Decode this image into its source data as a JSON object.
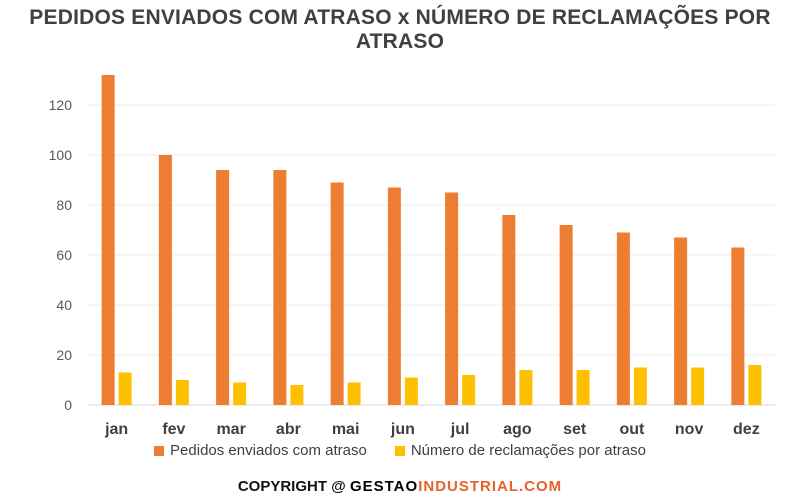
{
  "chart_data": {
    "type": "bar",
    "title": "PEDIDOS ENVIADOS COM ATRASO x NÚMERO DE RECLAMAÇÕES POR ATRASO",
    "categories": [
      "jan",
      "fev",
      "mar",
      "abr",
      "mai",
      "jun",
      "jul",
      "ago",
      "set",
      "out",
      "nov",
      "dez"
    ],
    "series": [
      {
        "name": "Pedidos enviados com atraso",
        "color": "#ed7d31",
        "values": [
          132,
          100,
          94,
          94,
          89,
          87,
          85,
          76,
          72,
          69,
          67,
          63
        ]
      },
      {
        "name": "Número de reclamações por atraso",
        "color": "#ffc000",
        "values": [
          13,
          10,
          9,
          8,
          9,
          11,
          12,
          14,
          14,
          15,
          15,
          16
        ]
      }
    ],
    "ylim": [
      0,
      140
    ],
    "yticks": [
      0,
      20,
      40,
      60,
      80,
      100,
      120
    ],
    "xlabel": "",
    "ylabel": "",
    "grid": true,
    "legend_position": "bottom"
  },
  "footer": {
    "copyright_prefix": "COPYRIGHT @",
    "brand_part1": "GESTAO",
    "brand_part2": "INDUSTRIAL.COM"
  }
}
